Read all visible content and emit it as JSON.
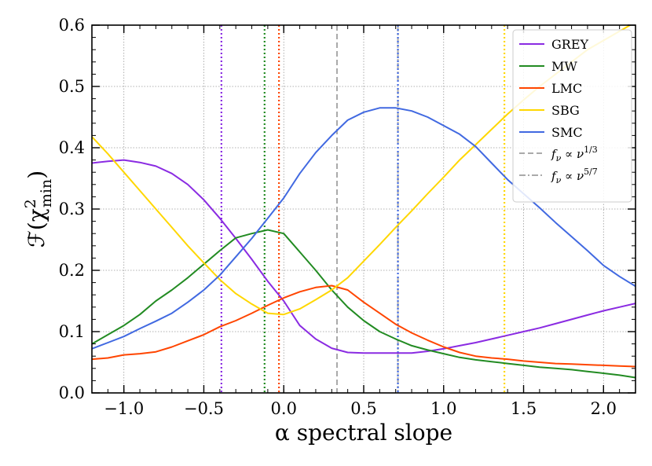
{
  "chart_data": {
    "type": "line",
    "xlabel": "α spectral slope",
    "ylabel_parts": [
      "ℱ(χ",
      "2",
      "min",
      ")"
    ],
    "xlim": [
      -1.2,
      2.2
    ],
    "ylim": [
      0.0,
      0.6
    ],
    "grid": true,
    "legend_position": "top-right",
    "x_ticks": [
      -1.0,
      -0.5,
      0.0,
      0.5,
      1.0,
      1.5,
      2.0
    ],
    "x_tick_labels": [
      "−1.0",
      "−0.5",
      "0.0",
      "0.5",
      "1.0",
      "1.5",
      "2.0"
    ],
    "y_ticks": [
      0.0,
      0.1,
      0.2,
      0.3,
      0.4,
      0.5,
      0.6
    ],
    "y_tick_labels": [
      "0.0",
      "0.1",
      "0.2",
      "0.3",
      "0.4",
      "0.5",
      "0.6"
    ],
    "x": [
      -1.2,
      -1.1,
      -1.0,
      -0.9,
      -0.8,
      -0.7,
      -0.6,
      -0.5,
      -0.4,
      -0.3,
      -0.2,
      -0.1,
      0.0,
      0.1,
      0.2,
      0.3,
      0.4,
      0.5,
      0.6,
      0.7,
      0.8,
      0.9,
      1.0,
      1.1,
      1.2,
      1.3,
      1.4,
      1.5,
      1.6,
      1.7,
      1.8,
      1.9,
      2.0,
      2.1,
      2.2
    ],
    "series": [
      {
        "name": "GREY",
        "color": "#8a2be2",
        "values": [
          0.375,
          0.378,
          0.38,
          0.376,
          0.37,
          0.358,
          0.34,
          0.315,
          0.285,
          0.252,
          0.218,
          0.182,
          0.15,
          0.11,
          0.088,
          0.073,
          0.066,
          0.065,
          0.065,
          0.065,
          0.065,
          0.068,
          0.072,
          0.077,
          0.082,
          0.088,
          0.094,
          0.1,
          0.106,
          0.113,
          0.12,
          0.127,
          0.134,
          0.14,
          0.146
        ]
      },
      {
        "name": "MW",
        "color": "#228b22",
        "values": [
          0.08,
          0.095,
          0.11,
          0.128,
          0.15,
          0.168,
          0.188,
          0.21,
          0.232,
          0.253,
          0.26,
          0.266,
          0.26,
          0.23,
          0.2,
          0.168,
          0.14,
          0.118,
          0.1,
          0.088,
          0.077,
          0.07,
          0.064,
          0.058,
          0.054,
          0.051,
          0.048,
          0.045,
          0.042,
          0.04,
          0.038,
          0.035,
          0.032,
          0.029,
          0.025
        ]
      },
      {
        "name": "LMC",
        "color": "#ff4500",
        "values": [
          0.055,
          0.057,
          0.062,
          0.064,
          0.067,
          0.075,
          0.085,
          0.095,
          0.108,
          0.118,
          0.13,
          0.143,
          0.155,
          0.165,
          0.172,
          0.175,
          0.168,
          0.148,
          0.13,
          0.112,
          0.098,
          0.086,
          0.075,
          0.066,
          0.06,
          0.057,
          0.055,
          0.052,
          0.05,
          0.048,
          0.047,
          0.046,
          0.045,
          0.044,
          0.043
        ]
      },
      {
        "name": "SBG",
        "color": "#ffd700",
        "values": [
          0.418,
          0.39,
          0.36,
          0.33,
          0.3,
          0.27,
          0.24,
          0.212,
          0.185,
          0.162,
          0.145,
          0.13,
          0.128,
          0.137,
          0.152,
          0.168,
          0.188,
          0.215,
          0.242,
          0.27,
          0.297,
          0.325,
          0.352,
          0.38,
          0.405,
          0.43,
          0.455,
          0.478,
          0.5,
          0.52,
          0.54,
          0.56,
          0.575,
          0.59,
          0.605
        ]
      },
      {
        "name": "SMC",
        "color": "#4169e1",
        "values": [
          0.072,
          0.082,
          0.092,
          0.105,
          0.117,
          0.13,
          0.148,
          0.168,
          0.192,
          0.222,
          0.252,
          0.285,
          0.318,
          0.358,
          0.392,
          0.42,
          0.445,
          0.458,
          0.465,
          0.465,
          0.46,
          0.45,
          0.436,
          0.422,
          0.402,
          0.375,
          0.348,
          0.325,
          0.302,
          0.278,
          0.255,
          0.232,
          0.208,
          0.19,
          0.174
        ]
      }
    ],
    "vlines": [
      {
        "name": "GREY best",
        "x": -0.39,
        "color": "#8a2be2",
        "style": "dotted"
      },
      {
        "name": "MW best",
        "x": -0.12,
        "color": "#228b22",
        "style": "dotted"
      },
      {
        "name": "LMC best",
        "x": -0.03,
        "color": "#ff4500",
        "style": "dotted"
      },
      {
        "name": "f_ν ∝ ν^1/3",
        "x": 0.333,
        "color": "#aaaaaa",
        "style": "dashed"
      },
      {
        "name": "f_ν ∝ ν^5/7",
        "x": 0.714,
        "color": "#aaaaaa",
        "style": "dashdot"
      },
      {
        "name": "SMC best",
        "x": 0.714,
        "color": "#4169e1",
        "style": "dotted"
      },
      {
        "name": "SBG best",
        "x": 1.38,
        "color": "#ffd700",
        "style": "dotted"
      }
    ],
    "legend": {
      "entries": [
        {
          "label": "GREY",
          "color": "#8a2be2",
          "style": "solid"
        },
        {
          "label": "MW",
          "color": "#228b22",
          "style": "solid"
        },
        {
          "label": "LMC",
          "color": "#ff4500",
          "style": "solid"
        },
        {
          "label": "SBG",
          "color": "#ffd700",
          "style": "solid"
        },
        {
          "label": "SMC",
          "color": "#4169e1",
          "style": "solid"
        }
      ],
      "powerlaw_entries": [
        {
          "label_base": "f",
          "label_sub": "ν",
          "label_mid": " ∝ ν",
          "label_sup": "1/3",
          "color": "#aaaaaa",
          "style": "dashed"
        },
        {
          "label_base": "f",
          "label_sub": "ν",
          "label_mid": " ∝ ν",
          "label_sup": "5/7",
          "color": "#aaaaaa",
          "style": "dashdot"
        }
      ]
    }
  }
}
